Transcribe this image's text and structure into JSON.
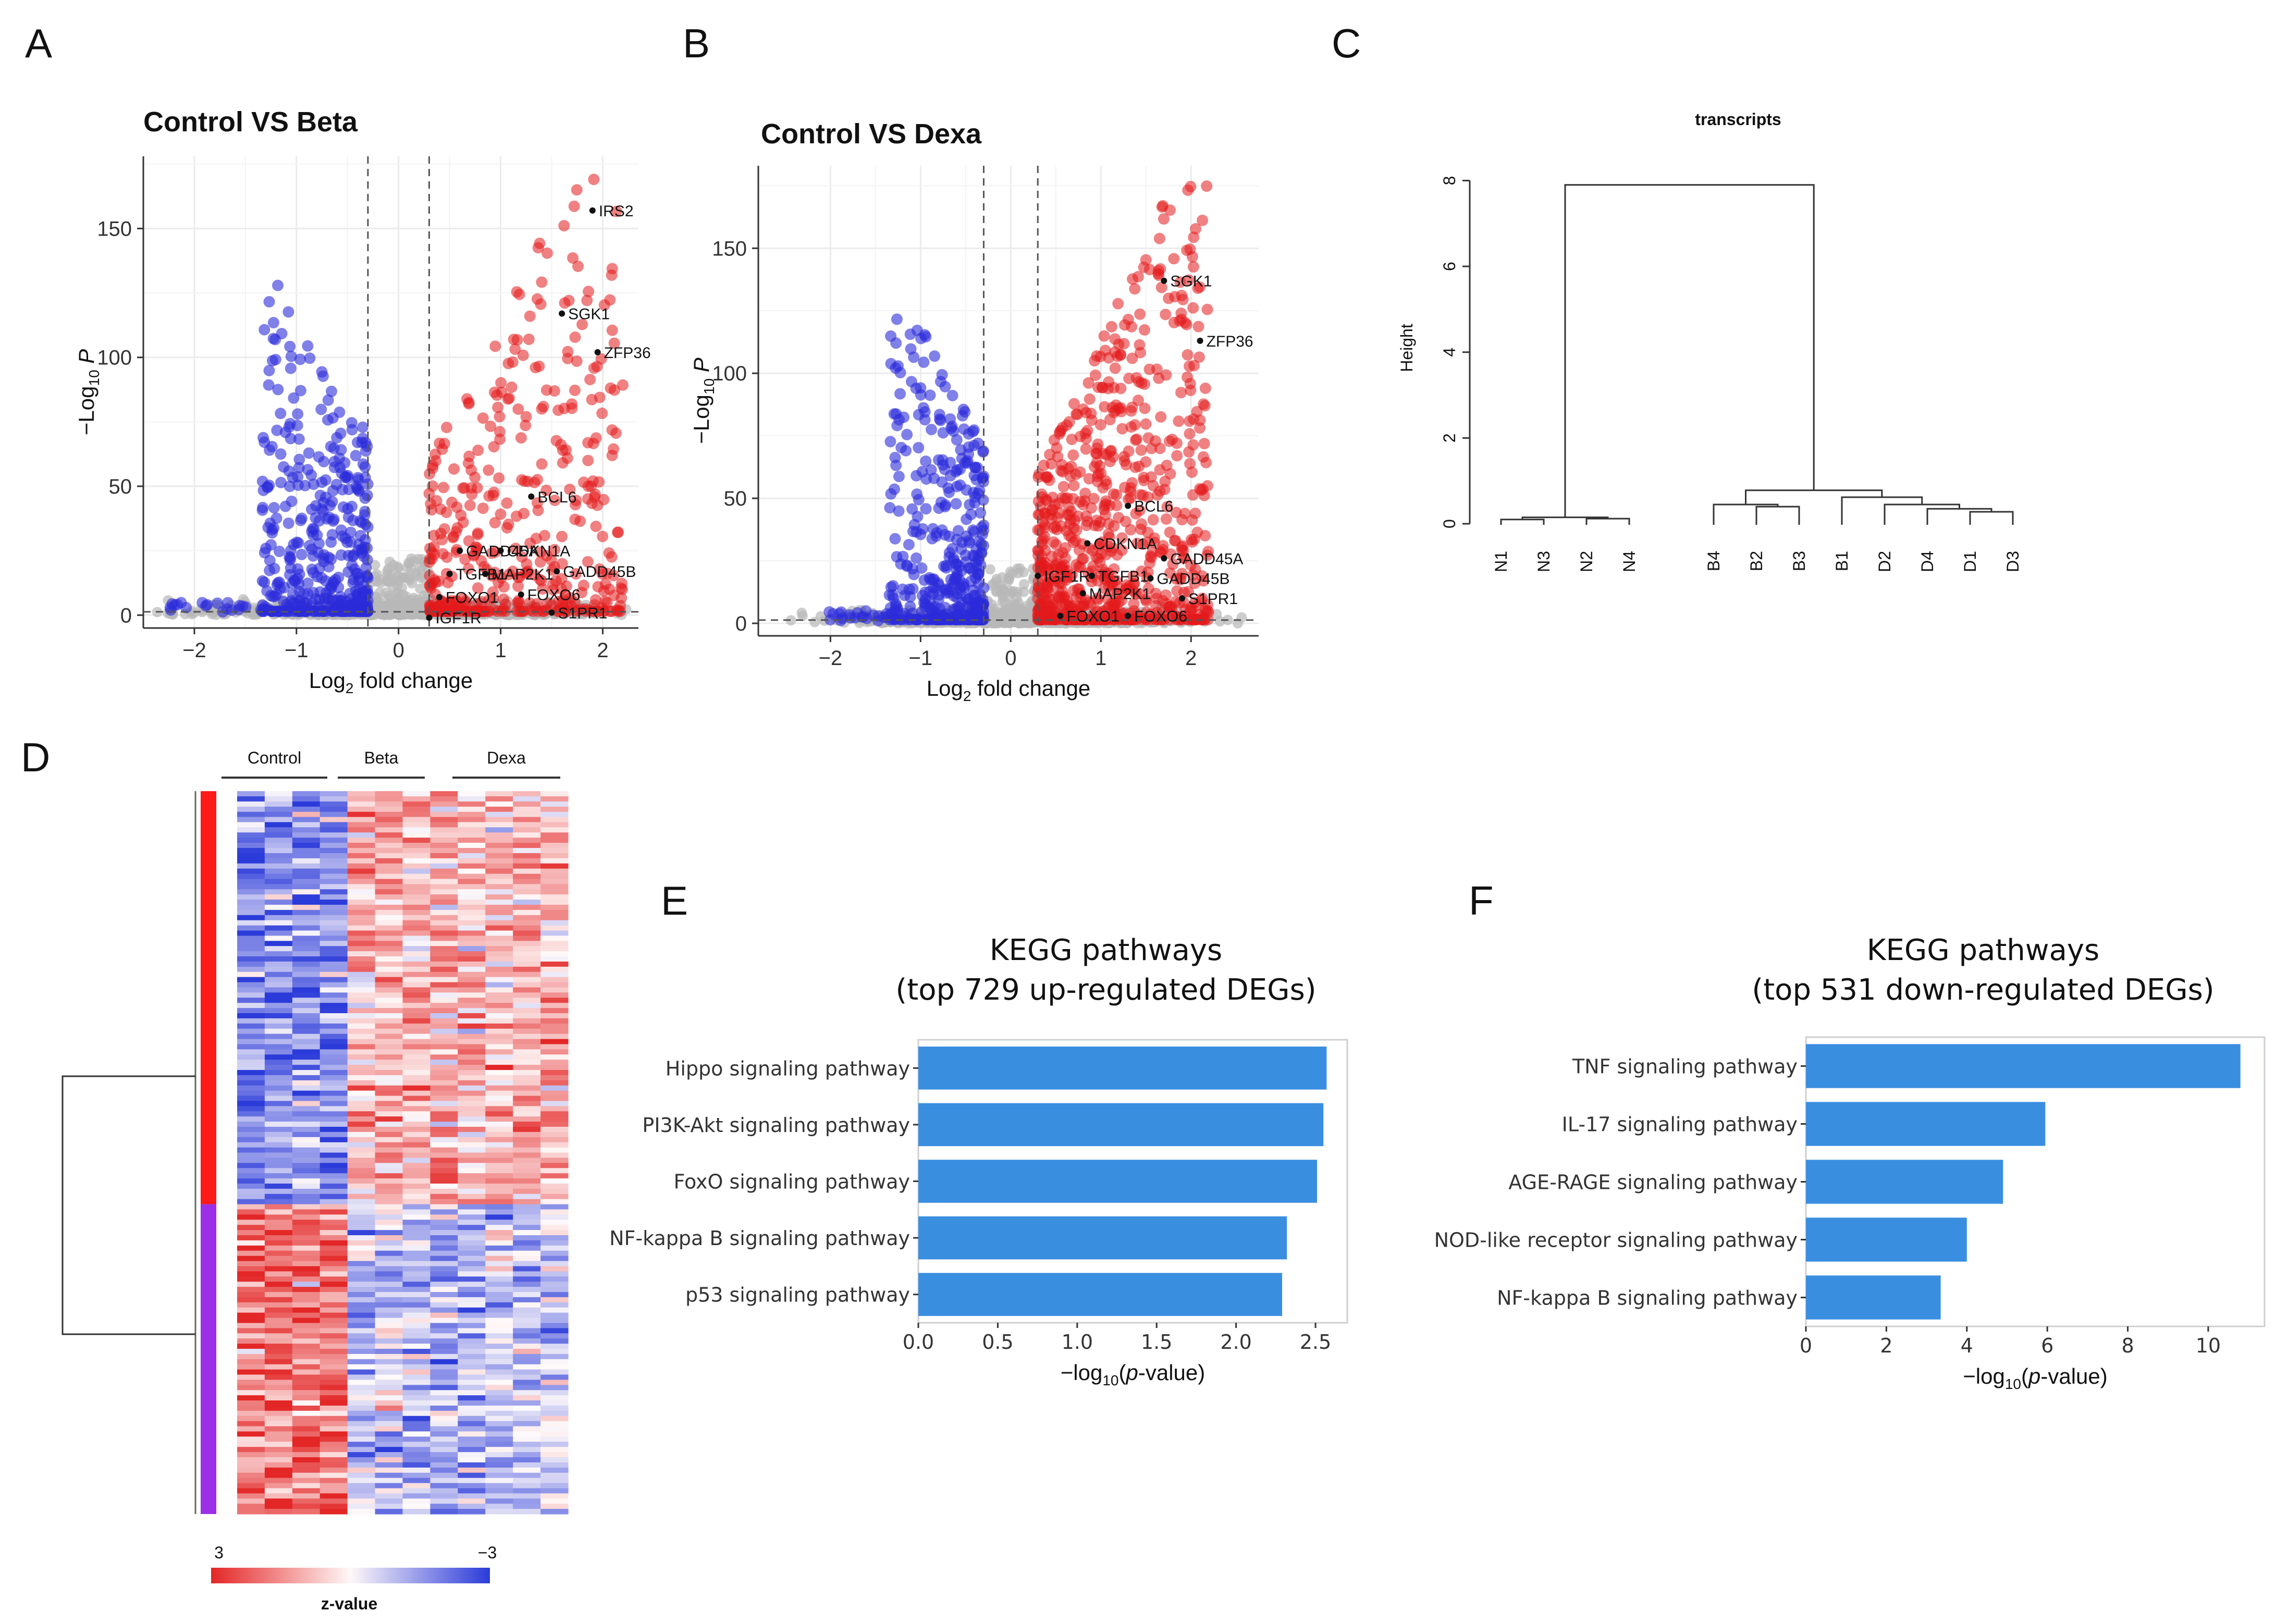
{
  "panels": {
    "A": "A",
    "B": "B",
    "C": "C",
    "D": "D",
    "E": "E",
    "F": "F"
  },
  "colors": {
    "up": "#e41a1c",
    "down": "#2b2bdb",
    "ns": "#b8b8b8",
    "bar": "#3a8ee0",
    "heat_high": "#e32626",
    "heat_low": "#2b3bd9",
    "cluster_up": "#ff1a1a",
    "cluster_down": "#9b30e8"
  },
  "chart_data": [
    {
      "type": "scatter",
      "id": "volcano-beta",
      "title": "Control VS Beta",
      "xlabel": "Log2 fold change",
      "ylabel": "-Log10 P",
      "xlim": [
        -2.5,
        2.35
      ],
      "ylim": [
        -5,
        178
      ],
      "xticks": [
        "-2",
        "-1",
        "0",
        "1",
        "2"
      ],
      "xtick_values": [
        -2,
        -1,
        0,
        1,
        2
      ],
      "yticks": [
        "0",
        "50",
        "100",
        "150"
      ],
      "ytick_values": [
        0,
        50,
        100,
        150
      ],
      "fc_cutoff": 0.3,
      "p_cutoff": 1.3,
      "labels": [
        {
          "gene": "IRS2",
          "x": 1.9,
          "y": 157
        },
        {
          "gene": "SGK1",
          "x": 1.6,
          "y": 117
        },
        {
          "gene": "ZFP36",
          "x": 1.95,
          "y": 102
        },
        {
          "gene": "BCL6",
          "x": 1.3,
          "y": 46
        },
        {
          "gene": "GADD45A",
          "x": 0.6,
          "y": 25
        },
        {
          "gene": "CDKN1A",
          "x": 1.0,
          "y": 25
        },
        {
          "gene": "TGFB1",
          "x": 0.5,
          "y": 16
        },
        {
          "gene": "MAP2K1",
          "x": 0.85,
          "y": 16
        },
        {
          "gene": "GADD45B",
          "x": 1.55,
          "y": 17
        },
        {
          "gene": "FOXO1",
          "x": 0.4,
          "y": 7
        },
        {
          "gene": "FOXO6",
          "x": 1.2,
          "y": 8
        },
        {
          "gene": "IGF1R",
          "x": 0.3,
          "y": -1
        },
        {
          "gene": "S1PR1",
          "x": 1.5,
          "y": 1
        }
      ]
    },
    {
      "type": "scatter",
      "id": "volcano-dexa",
      "title": "Control VS Dexa",
      "xlabel": "Log2 fold change",
      "ylabel": "-Log10 P",
      "xlim": [
        -2.8,
        2.75
      ],
      "ylim": [
        -5,
        183
      ],
      "xticks": [
        "-2",
        "-1",
        "0",
        "1",
        "2"
      ],
      "xtick_values": [
        -2,
        -1,
        0,
        1,
        2
      ],
      "yticks": [
        "0",
        "50",
        "100",
        "150"
      ],
      "ytick_values": [
        0,
        50,
        100,
        150
      ],
      "fc_cutoff": 0.3,
      "p_cutoff": 1.3,
      "labels": [
        {
          "gene": "SGK1",
          "x": 1.7,
          "y": 137
        },
        {
          "gene": "ZFP36",
          "x": 2.1,
          "y": 113
        },
        {
          "gene": "BCL6",
          "x": 1.3,
          "y": 47
        },
        {
          "gene": "CDKN1A",
          "x": 0.85,
          "y": 32
        },
        {
          "gene": "IGF1R",
          "x": 0.3,
          "y": 19
        },
        {
          "gene": "TGFB1",
          "x": 0.9,
          "y": 19
        },
        {
          "gene": "GADD45A",
          "x": 1.7,
          "y": 26
        },
        {
          "gene": "GADD45B",
          "x": 1.55,
          "y": 18
        },
        {
          "gene": "MAP2K1",
          "x": 0.8,
          "y": 12
        },
        {
          "gene": "S1PR1",
          "x": 1.9,
          "y": 10
        },
        {
          "gene": "FOXO1",
          "x": 0.55,
          "y": 3
        },
        {
          "gene": "FOXO6",
          "x": 1.3,
          "y": 3
        }
      ]
    },
    {
      "type": "dendrogram",
      "id": "cluster-dendrogram",
      "title": "transcripts",
      "ylabel": "Height",
      "ylim": [
        0,
        8.2
      ],
      "yticks": [
        "0",
        "2",
        "4",
        "6",
        "8"
      ],
      "ytick_values": [
        0,
        2,
        4,
        6,
        8
      ],
      "leaves": [
        "N1",
        "N3",
        "N2",
        "N4",
        "B4",
        "B2",
        "B3",
        "B1",
        "D2",
        "D4",
        "D1",
        "D3"
      ],
      "merges": [
        {
          "a": 0,
          "b": 1,
          "height": 0.1
        },
        {
          "a": 2,
          "b": 3,
          "height": 0.12
        },
        {
          "a": "m0",
          "b": "m1",
          "height": 0.15
        },
        {
          "a": 5,
          "b": 6,
          "height": 0.4
        },
        {
          "a": 4,
          "b": "m3",
          "height": 0.45
        },
        {
          "a": 10,
          "b": 11,
          "height": 0.28
        },
        {
          "a": 9,
          "b": "m5",
          "height": 0.35
        },
        {
          "a": 8,
          "b": "m6",
          "height": 0.45
        },
        {
          "a": 7,
          "b": "m7",
          "height": 0.62
        },
        {
          "a": "m4",
          "b": "m8",
          "height": 0.78
        },
        {
          "a": "m2",
          "b": "m9",
          "height": 7.9
        }
      ]
    },
    {
      "type": "heatmap",
      "id": "heatmap-deg",
      "groups": [
        "Control",
        "Beta",
        "Dexa"
      ],
      "legend_max": "3",
      "legend_min": "−3",
      "legend_title": "z-value"
    },
    {
      "type": "bar",
      "id": "kegg-up",
      "orientation": "horizontal",
      "title_line1": "KEGG pathways",
      "title_line2": "(top 729 up-regulated DEGs)",
      "categories": [
        "Hippo signaling pathway",
        "PI3K-Akt signaling pathway",
        "FoxO signaling pathway",
        "NF-kappa B signaling pathway",
        "p53 signaling pathway"
      ],
      "values": [
        2.57,
        2.55,
        2.51,
        2.32,
        2.29
      ],
      "xlim": [
        0,
        2.7
      ],
      "xticks": [
        "0.0",
        "0.5",
        "1.0",
        "1.5",
        "2.0",
        "2.5"
      ],
      "xtick_values": [
        0,
        0.5,
        1.0,
        1.5,
        2.0,
        2.5
      ],
      "xlabel": "−log10(p-value)"
    },
    {
      "type": "bar",
      "id": "kegg-down",
      "orientation": "horizontal",
      "title_line1": "KEGG pathways",
      "title_line2": "(top 531 down-regulated DEGs)",
      "categories": [
        "TNF signaling pathway",
        "IL-17 signaling pathway",
        "AGE-RAGE signaling pathway",
        "NOD-like receptor signaling pathway",
        "NF-kappa B signaling pathway"
      ],
      "values": [
        10.8,
        5.95,
        4.9,
        4.0,
        3.35
      ],
      "xlim": [
        0,
        11.4
      ],
      "xticks": [
        "0",
        "2",
        "4",
        "6",
        "8",
        "10"
      ],
      "xtick_values": [
        0,
        2,
        4,
        6,
        8,
        10
      ],
      "xlabel": "−log10(p-value)"
    }
  ]
}
